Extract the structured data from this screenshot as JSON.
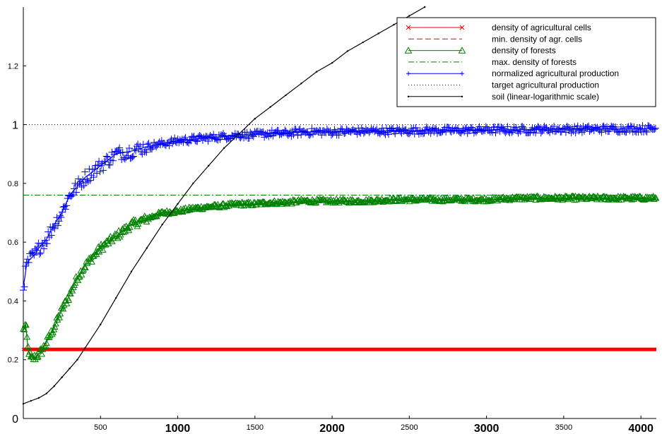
{
  "chart_data": {
    "type": "line",
    "title": "",
    "xlabel": "",
    "ylabel": "",
    "xlim": [
      0,
      4100
    ],
    "ylim": [
      0,
      1.4
    ],
    "grid": false,
    "legend_position": "top-right",
    "x_ticks": [
      {
        "value": 500,
        "label": "500",
        "size": "small"
      },
      {
        "value": 1000,
        "label": "1000",
        "size": "large"
      },
      {
        "value": 1500,
        "label": "1500",
        "size": "small"
      },
      {
        "value": 2000,
        "label": "2000",
        "size": "large"
      },
      {
        "value": 2500,
        "label": "2500",
        "size": "small"
      },
      {
        "value": 3000,
        "label": "3000",
        "size": "large"
      },
      {
        "value": 3500,
        "label": "3500",
        "size": "small"
      },
      {
        "value": 4000,
        "label": "4000",
        "size": "large"
      }
    ],
    "y_ticks": [
      {
        "value": 0,
        "label": "0",
        "size": "large"
      },
      {
        "value": 0.2,
        "label": "0.2",
        "size": "small"
      },
      {
        "value": 0.4,
        "label": "0.4",
        "size": "small"
      },
      {
        "value": 0.6,
        "label": "0.6",
        "size": "small"
      },
      {
        "value": 0.8,
        "label": "0.8",
        "size": "small"
      },
      {
        "value": 1,
        "label": "1",
        "size": "large"
      },
      {
        "value": 1.2,
        "label": "1.2",
        "size": "small"
      }
    ],
    "series": [
      {
        "name": "density of agricultural cells",
        "color": "#ff0000",
        "style": "solid",
        "marker": "x",
        "linewidth": 5,
        "x": [
          0,
          50,
          4100
        ],
        "y": [
          0.235,
          0.235,
          0.235
        ]
      },
      {
        "name": "min. density of agr. cells",
        "color": "#ff0000",
        "style": "dashed",
        "marker": "none",
        "x": [
          0,
          4100
        ],
        "y": [
          0.235,
          0.235
        ]
      },
      {
        "name": "density of forests",
        "color": "#008000",
        "style": "solid",
        "marker": "triangle",
        "x": [
          0,
          15,
          30,
          50,
          80,
          120,
          160,
          200,
          250,
          300,
          350,
          400,
          450,
          500,
          600,
          700,
          800,
          900,
          1000,
          1100,
          1200,
          1300,
          1400,
          1500,
          1600,
          1700,
          1800,
          1900,
          2000,
          2200,
          2400,
          2600,
          2800,
          3000,
          3200,
          3400,
          3600,
          3800,
          4000,
          4100
        ],
        "y": [
          0.3,
          0.32,
          0.24,
          0.2,
          0.21,
          0.23,
          0.27,
          0.31,
          0.37,
          0.42,
          0.48,
          0.52,
          0.55,
          0.58,
          0.62,
          0.66,
          0.68,
          0.7,
          0.705,
          0.715,
          0.72,
          0.725,
          0.73,
          0.73,
          0.735,
          0.735,
          0.74,
          0.74,
          0.74,
          0.74,
          0.745,
          0.745,
          0.745,
          0.745,
          0.75,
          0.75,
          0.75,
          0.75,
          0.75,
          0.75
        ]
      },
      {
        "name": "max. density of forests",
        "color": "#008000",
        "style": "dashdot",
        "marker": "none",
        "x": [
          0,
          4100
        ],
        "y": [
          0.76,
          0.76
        ]
      },
      {
        "name": "normalized agricultural production",
        "color": "#0000ff",
        "style": "solid",
        "marker": "plus",
        "x": [
          0,
          10,
          20,
          40,
          60,
          80,
          100,
          150,
          200,
          250,
          300,
          350,
          400,
          450,
          500,
          550,
          600,
          700,
          800,
          900,
          1000,
          1100,
          1200,
          1300,
          1400,
          1500,
          1600,
          1700,
          1800,
          1900,
          2000,
          2200,
          2400,
          2600,
          2800,
          3000,
          3200,
          3400,
          3600,
          3800,
          4000,
          4100
        ],
        "y": [
          0.45,
          0.48,
          0.52,
          0.54,
          0.55,
          0.56,
          0.58,
          0.61,
          0.66,
          0.7,
          0.76,
          0.79,
          0.82,
          0.84,
          0.86,
          0.88,
          0.9,
          0.91,
          0.925,
          0.935,
          0.945,
          0.95,
          0.955,
          0.96,
          0.965,
          0.965,
          0.97,
          0.97,
          0.975,
          0.975,
          0.975,
          0.978,
          0.978,
          0.98,
          0.98,
          0.982,
          0.982,
          0.984,
          0.984,
          0.985,
          0.986,
          0.986
        ]
      },
      {
        "name": "target agricultural production",
        "color": "#000000",
        "style": "dotted",
        "marker": "none",
        "x": [
          0,
          4100
        ],
        "y": [
          1.0,
          1.0
        ]
      },
      {
        "name": "soil (linear-logarithmic scale)",
        "color": "#000000",
        "style": "solid",
        "marker": "dot",
        "x": [
          0,
          50,
          100,
          150,
          200,
          250,
          300,
          350,
          400,
          500,
          600,
          700,
          800,
          900,
          1000,
          1100,
          1200,
          1300,
          1400,
          1500,
          1600,
          1700,
          1800,
          1900,
          2000,
          2100,
          2200,
          2300,
          2400,
          2500,
          2600
        ],
        "y": [
          0.05,
          0.06,
          0.07,
          0.085,
          0.11,
          0.14,
          0.17,
          0.2,
          0.24,
          0.32,
          0.41,
          0.5,
          0.58,
          0.66,
          0.73,
          0.8,
          0.86,
          0.92,
          0.97,
          1.02,
          1.06,
          1.1,
          1.14,
          1.18,
          1.21,
          1.25,
          1.28,
          1.31,
          1.34,
          1.37,
          1.4
        ]
      }
    ]
  }
}
